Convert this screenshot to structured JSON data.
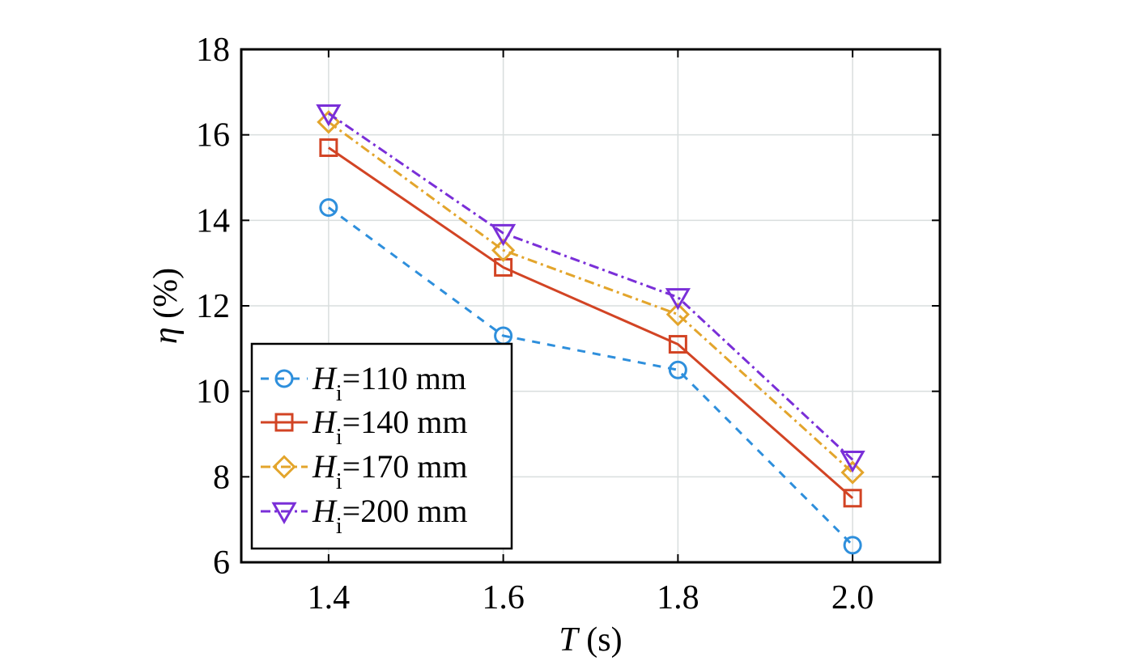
{
  "chart_data": {
    "type": "line",
    "x": [
      1.4,
      1.6,
      1.8,
      2.0
    ],
    "xtick_labels": [
      "1.4",
      "1.6",
      "1.8",
      "2.0"
    ],
    "ytick_values": [
      6,
      8,
      10,
      12,
      14,
      16,
      18
    ],
    "ytick_labels": [
      "6",
      "8",
      "10",
      "12",
      "14",
      "16",
      "18"
    ],
    "xlim": [
      1.3,
      2.1
    ],
    "ylim": [
      6,
      18
    ],
    "xlabel": {
      "symbol": "T",
      "unit": " (s)"
    },
    "ylabel": {
      "symbol": "η",
      "unit": " (%)"
    },
    "grid": true,
    "legend_position": "bottom-left",
    "series": [
      {
        "name": "Hi=110 mm",
        "legend_main": "H",
        "legend_sub": "i",
        "legend_value": "=110 mm",
        "values": [
          14.3,
          11.3,
          10.5,
          6.4
        ],
        "color": "#2e8fdc",
        "dash": "10,9",
        "marker": "circle"
      },
      {
        "name": "Hi=140 mm",
        "legend_main": "H",
        "legend_sub": "i",
        "legend_value": "=140 mm",
        "values": [
          15.7,
          12.9,
          11.1,
          7.5
        ],
        "color": "#d24424",
        "dash": "",
        "marker": "square"
      },
      {
        "name": "Hi=170 mm",
        "legend_main": "H",
        "legend_sub": "i",
        "legend_value": "=170 mm",
        "values": [
          16.3,
          13.3,
          11.8,
          8.1
        ],
        "color": "#e3a52c",
        "dash": "12,5,3,5",
        "marker": "diamond"
      },
      {
        "name": "Hi=200 mm",
        "legend_main": "H",
        "legend_sub": "i",
        "legend_value": "=200 mm",
        "values": [
          16.5,
          13.7,
          12.2,
          8.4
        ],
        "color": "#7a2fd8",
        "dash": "12,5,3,5",
        "marker": "triangle-down"
      }
    ]
  }
}
